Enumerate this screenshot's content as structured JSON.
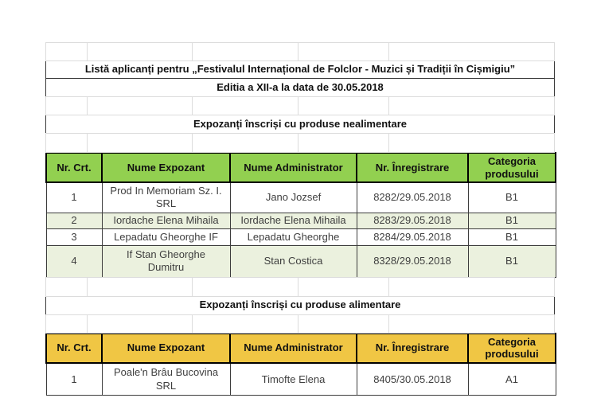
{
  "document": {
    "title": "Listă aplicanți pentru „Festivalul Internațional de Folclor - Muzici și Tradiții în Cișmigiu”",
    "subtitle": "Editia a XII-a la data de 30.05.2018"
  },
  "colors": {
    "green_header": "#92d050",
    "green_row_alt": "#ebf1de",
    "gold_header": "#f0c644",
    "grid_line": "#dcdcdc",
    "cell_text": "#3f3f3f"
  },
  "sections": [
    {
      "heading": "Expozanți înscriși cu produse nealimentare",
      "columns": [
        "Nr. Crt.",
        "Nume Expozant",
        "Nume Administrator",
        "Nr. Înregistrare",
        "Categoria produsului"
      ],
      "rows": [
        [
          "1",
          "Prod In Memoriam Sz. I. SRL",
          "Jano Jozsef",
          "8282/29.05.2018",
          "B1"
        ],
        [
          "2",
          "Iordache Elena Mihaila",
          "Iordache Elena Mihaila",
          "8283/29.05.2018",
          "B1"
        ],
        [
          "3",
          "Lepadatu Gheorghe IF",
          "Lepadatu Gheorghe",
          "8284/29.05.2018",
          "B1"
        ],
        [
          "4",
          "If Stan Gheorghe Dumitru",
          "Stan Costica",
          "8328/29.05.2018",
          "B1"
        ]
      ]
    },
    {
      "heading": "Expozanți înscriși cu produse alimentare",
      "columns": [
        "Nr. Crt.",
        "Nume Expozant",
        "Nume Administrator",
        "Nr. Înregistrare",
        "Categoria produsului"
      ],
      "rows": [
        [
          "1",
          "Poale'n Brâu Bucovina SRL",
          "Timofte Elena",
          "8405/30.05.2018",
          "A1"
        ]
      ]
    }
  ]
}
